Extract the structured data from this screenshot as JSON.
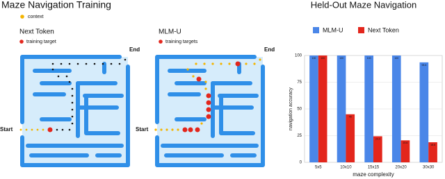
{
  "training": {
    "title": "Maze Navigation Training",
    "legend": "context",
    "panels": [
      {
        "title": "Next Token",
        "legend": "training target",
        "start": "Start",
        "end": "End"
      },
      {
        "title": "MLM-U",
        "legend": "training targets",
        "start": "Start",
        "end": "End"
      }
    ]
  },
  "chart_data": {
    "type": "bar",
    "title": "Held-Out Maze Navigation",
    "categories": [
      "5x5",
      "10x10",
      "15x15",
      "20x20",
      "30x30"
    ],
    "series": [
      {
        "name": "MLM-U",
        "color": "#4a86e8",
        "values": [
          100,
          100,
          100,
          100,
          93.6
        ]
      },
      {
        "name": "Next Token",
        "color": "#e3261c",
        "values": [
          100,
          45,
          24.4,
          20.6,
          18.8
        ]
      }
    ],
    "xlabel": "maze complexity",
    "ylabel": "navigation accuracy",
    "ylim": [
      0,
      100
    ],
    "yticks": [
      0,
      25,
      50,
      75,
      100
    ],
    "grid": true,
    "legend": "top"
  }
}
